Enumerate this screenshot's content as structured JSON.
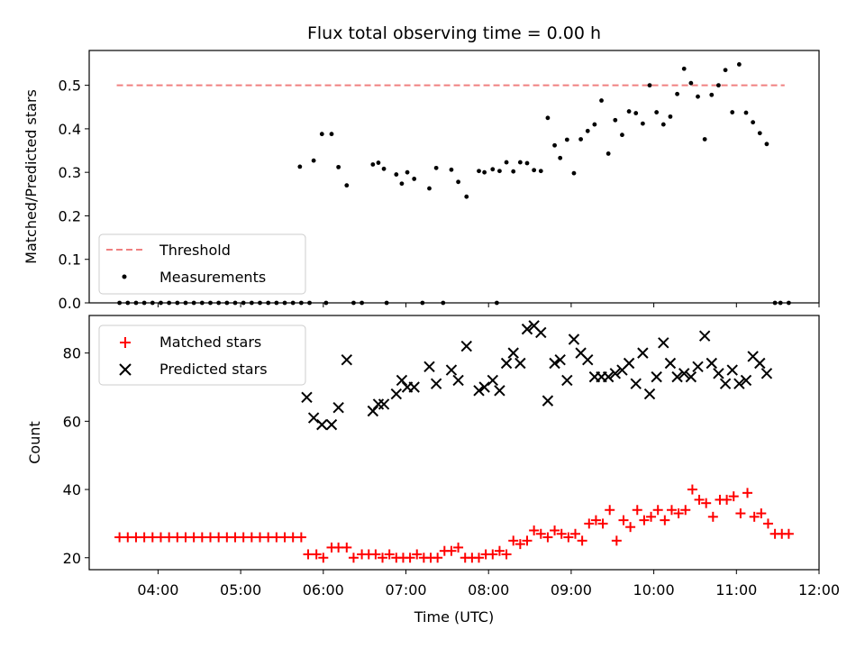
{
  "chart_data": [
    {
      "type": "scatter",
      "title": "Flux total observing time = 0.00 h",
      "xlabel": "",
      "ylabel": "Matched/Predicted stars",
      "ylim": [
        0,
        0.58
      ],
      "yticks": [
        "0.0",
        "0.1",
        "0.2",
        "0.3",
        "0.4",
        "0.5"
      ],
      "legend_position": "lower-left",
      "threshold": {
        "name": "Threshold",
        "y": 0.5,
        "x_range": [
          "03:30",
          "11:35"
        ],
        "color": "#f08080",
        "style": "dashed"
      },
      "series": [
        {
          "name": "Measurements",
          "marker": "dot",
          "color": "#000000",
          "x": [
            "03:32",
            "03:38",
            "03:44",
            "03:50",
            "03:56",
            "04:02",
            "04:08",
            "04:14",
            "04:20",
            "04:26",
            "04:32",
            "04:38",
            "04:44",
            "04:50",
            "04:56",
            "05:02",
            "05:08",
            "05:14",
            "05:20",
            "05:26",
            "05:32",
            "05:38",
            "05:44",
            "05:50",
            "06:02",
            "06:22",
            "06:28",
            "06:46",
            "07:12",
            "07:27",
            "08:06",
            "11:28",
            "11:32",
            "11:38",
            "05:43",
            "05:53",
            "05:59",
            "06:06",
            "06:11",
            "06:17",
            "06:36",
            "06:40",
            "06:44",
            "06:53",
            "06:57",
            "07:01",
            "07:06",
            "07:17",
            "07:22",
            "07:33",
            "07:38",
            "07:44",
            "07:53",
            "07:57",
            "08:03",
            "08:08",
            "08:13",
            "08:18",
            "08:23",
            "08:28",
            "08:33",
            "08:38",
            "08:43",
            "08:48",
            "08:52",
            "08:57",
            "09:02",
            "09:07",
            "09:12",
            "09:17",
            "09:22",
            "09:27",
            "09:32",
            "09:37",
            "09:42",
            "09:47",
            "09:52",
            "09:57",
            "10:02",
            "10:07",
            "10:12",
            "10:17",
            "10:22",
            "10:27",
            "10:32",
            "10:37",
            "10:42",
            "10:47",
            "10:52",
            "10:57",
            "11:02",
            "11:07",
            "11:12",
            "11:17",
            "11:22"
          ],
          "y": [
            0,
            0,
            0,
            0,
            0,
            0,
            0,
            0,
            0,
            0,
            0,
            0,
            0,
            0,
            0,
            0,
            0,
            0,
            0,
            0,
            0,
            0,
            0,
            0,
            0,
            0,
            0,
            0,
            0,
            0,
            0,
            0,
            0,
            0,
            0.313,
            0.327,
            0.388,
            0.388,
            0.312,
            0.27,
            0.318,
            0.322,
            0.308,
            0.295,
            0.274,
            0.3,
            0.285,
            0.263,
            0.31,
            0.306,
            0.278,
            0.244,
            0.303,
            0.3,
            0.307,
            0.303,
            0.323,
            0.302,
            0.323,
            0.321,
            0.305,
            0.303,
            0.425,
            0.362,
            0.333,
            0.375,
            0.298,
            0.376,
            0.395,
            0.41,
            0.465,
            0.343,
            0.42,
            0.386,
            0.44,
            0.436,
            0.412,
            0.5,
            0.438,
            0.41,
            0.428,
            0.48,
            0.538,
            0.505,
            0.474,
            0.376,
            0.478,
            0.5,
            0.535,
            0.438,
            0.548,
            0.437,
            0.415,
            0.39,
            0.365
          ]
        }
      ]
    },
    {
      "type": "scatter",
      "title": "",
      "xlabel": "Time (UTC)",
      "ylabel": "Count",
      "ylim": [
        16.5,
        91
      ],
      "yticks": [
        "20",
        "40",
        "60",
        "80"
      ],
      "xlim": [
        "03:10",
        "12:00"
      ],
      "xticks": [
        "04:00",
        "05:00",
        "06:00",
        "07:00",
        "08:00",
        "09:00",
        "10:00",
        "11:00",
        "12:00"
      ],
      "legend_position": "upper-left",
      "series": [
        {
          "name": "Matched stars",
          "marker": "plus",
          "color": "#ff0000",
          "x": [
            "03:32",
            "03:38",
            "03:44",
            "03:50",
            "03:56",
            "04:02",
            "04:08",
            "04:14",
            "04:20",
            "04:26",
            "04:32",
            "04:38",
            "04:44",
            "04:50",
            "04:56",
            "05:02",
            "05:08",
            "05:14",
            "05:20",
            "05:26",
            "05:32",
            "05:38",
            "05:44",
            "05:49",
            "05:55",
            "06:00",
            "06:06",
            "06:11",
            "06:17",
            "06:22",
            "06:28",
            "06:33",
            "06:38",
            "06:43",
            "06:48",
            "06:53",
            "06:58",
            "07:03",
            "07:08",
            "07:13",
            "07:18",
            "07:23",
            "07:28",
            "07:33",
            "07:38",
            "07:43",
            "07:48",
            "07:53",
            "07:58",
            "08:03",
            "08:08",
            "08:13",
            "08:18",
            "08:23",
            "08:28",
            "08:33",
            "08:38",
            "08:43",
            "08:48",
            "08:53",
            "08:58",
            "09:03",
            "09:08",
            "09:13",
            "09:18",
            "09:23",
            "09:28",
            "09:33",
            "09:38",
            "09:43",
            "09:48",
            "09:53",
            "09:58",
            "10:03",
            "10:08",
            "10:13",
            "10:18",
            "10:23",
            "10:28",
            "10:33",
            "10:38",
            "10:43",
            "10:48",
            "10:53",
            "10:58",
            "11:03",
            "11:08",
            "11:13",
            "11:18",
            "11:23",
            "11:28",
            "11:33",
            "11:38"
          ],
          "y": [
            26,
            26,
            26,
            26,
            26,
            26,
            26,
            26,
            26,
            26,
            26,
            26,
            26,
            26,
            26,
            26,
            26,
            26,
            26,
            26,
            26,
            26,
            26,
            21,
            21,
            20,
            23,
            23,
            23,
            20,
            21,
            21,
            21,
            20,
            21,
            20,
            20,
            20,
            21,
            20,
            20,
            20,
            22,
            22,
            23,
            20,
            20,
            20,
            21,
            21,
            22,
            21,
            25,
            24,
            25,
            28,
            27,
            26,
            28,
            27,
            26,
            27,
            25,
            30,
            31,
            30,
            34,
            25,
            31,
            29,
            34,
            31,
            32,
            34,
            31,
            34,
            33,
            34,
            40,
            37,
            36,
            32,
            37,
            37,
            38,
            33,
            39,
            32,
            33,
            30,
            27,
            27,
            27
          ]
        },
        {
          "name": "Predicted stars",
          "marker": "x",
          "color": "#000000",
          "x": [
            "05:48",
            "05:53",
            "05:59",
            "06:06",
            "06:11",
            "06:17",
            "06:36",
            "06:40",
            "06:44",
            "06:53",
            "06:57",
            "07:01",
            "07:06",
            "07:17",
            "07:22",
            "07:33",
            "07:38",
            "07:44",
            "07:53",
            "07:57",
            "08:03",
            "08:08",
            "08:13",
            "08:18",
            "08:23",
            "08:28",
            "08:33",
            "08:38",
            "08:43",
            "08:48",
            "08:52",
            "08:57",
            "09:02",
            "09:07",
            "09:12",
            "09:17",
            "09:22",
            "09:27",
            "09:32",
            "09:37",
            "09:42",
            "09:47",
            "09:52",
            "09:57",
            "10:02",
            "10:07",
            "10:12",
            "10:17",
            "10:22",
            "10:27",
            "10:32",
            "10:37",
            "10:42",
            "10:47",
            "10:52",
            "10:57",
            "11:02",
            "11:07",
            "11:12",
            "11:17",
            "11:22"
          ],
          "y": [
            67,
            61,
            59,
            59,
            64,
            78,
            63,
            65,
            65,
            68,
            72,
            70,
            70,
            76,
            71,
            75,
            72,
            82,
            69,
            70,
            72,
            69,
            77,
            80,
            77,
            87,
            88,
            86,
            66,
            77,
            78,
            72,
            84,
            80,
            78,
            73,
            73,
            73,
            74,
            75,
            77,
            71,
            80,
            68,
            73,
            83,
            77,
            73,
            74,
            73,
            76,
            85,
            77,
            74,
            71,
            75,
            71,
            72,
            79,
            77,
            74
          ]
        }
      ]
    }
  ]
}
